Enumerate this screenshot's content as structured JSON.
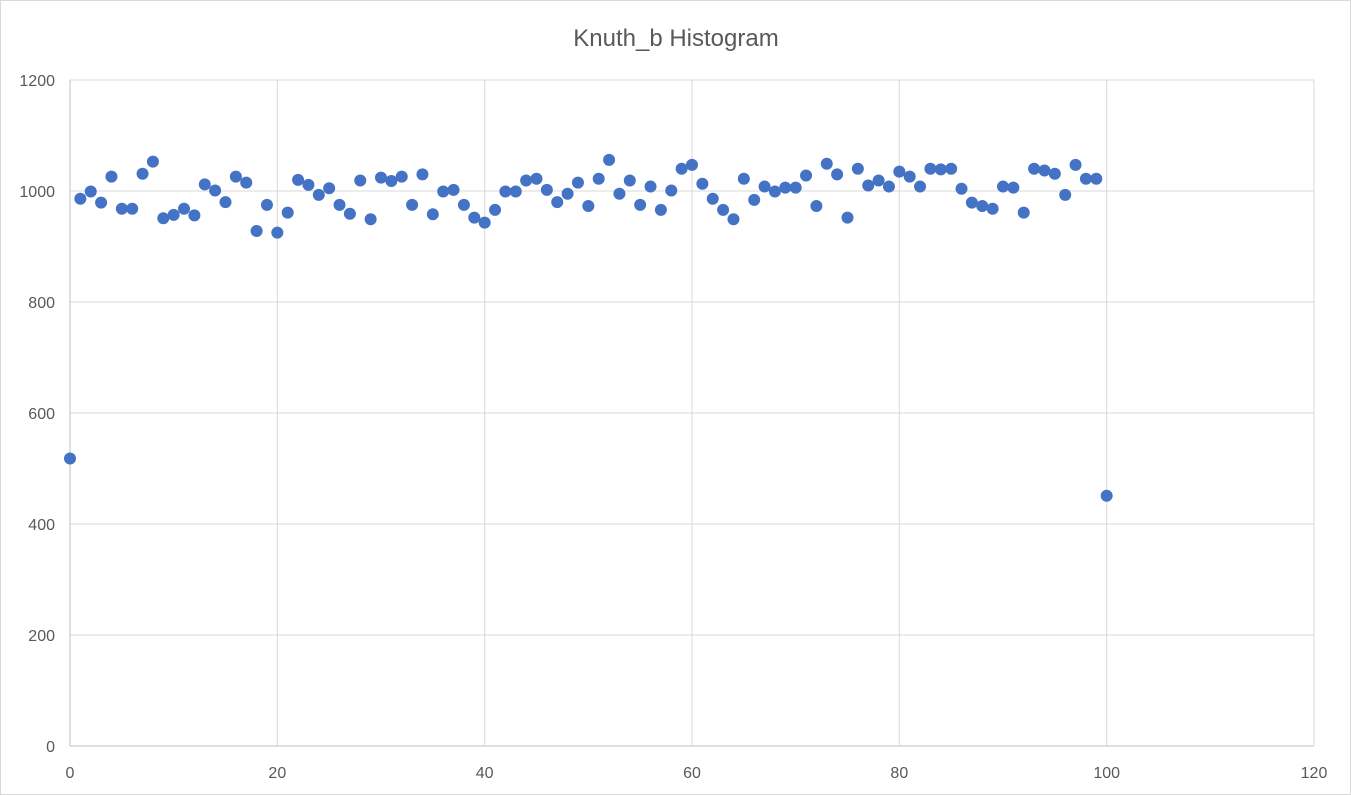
{
  "chart_data": {
    "type": "scatter",
    "title": "Knuth_b Histogram",
    "xlabel": "",
    "ylabel": "",
    "xlim": [
      0,
      120
    ],
    "ylim": [
      0,
      1200
    ],
    "x_ticks": [
      0,
      20,
      40,
      60,
      80,
      100,
      120
    ],
    "y_ticks": [
      0,
      200,
      400,
      600,
      800,
      1000,
      1200
    ],
    "grid": true,
    "legend": "none",
    "marker_color": "#4472c4",
    "series": [
      {
        "x": [
          0,
          1,
          2,
          3,
          4,
          5,
          6,
          7,
          8,
          9,
          10,
          11,
          12,
          13,
          14,
          15,
          16,
          17,
          18,
          19,
          20,
          21,
          22,
          23,
          24,
          25,
          26,
          27,
          28,
          29,
          30,
          31,
          32,
          33,
          34,
          35,
          36,
          37,
          38,
          39,
          40,
          41,
          42,
          43,
          44,
          45,
          46,
          47,
          48,
          49,
          50,
          51,
          52,
          53,
          54,
          55,
          56,
          57,
          58,
          59,
          60,
          61,
          62,
          63,
          64,
          65,
          66,
          67,
          68,
          69,
          70,
          71,
          72,
          73,
          74,
          75,
          76,
          77,
          78,
          79,
          80,
          81,
          82,
          83,
          84,
          85,
          86,
          87,
          88,
          89,
          90,
          91,
          92,
          93,
          94,
          95,
          96,
          97,
          98,
          99,
          100
        ],
        "y": [
          518,
          986,
          999,
          979,
          1026,
          968,
          968,
          1031,
          1053,
          951,
          957,
          968,
          956,
          1012,
          1001,
          980,
          1026,
          1015,
          928,
          975,
          925,
          961,
          1020,
          1011,
          993,
          1005,
          975,
          959,
          1019,
          949,
          1024,
          1018,
          1026,
          975,
          1030,
          958,
          999,
          1002,
          975,
          952,
          943,
          966,
          999,
          999,
          1019,
          1022,
          1002,
          980,
          995,
          1015,
          973,
          1022,
          1056,
          995,
          1019,
          975,
          1008,
          966,
          1001,
          1040,
          1047,
          1013,
          986,
          966,
          949,
          1022,
          984,
          1008,
          999,
          1006,
          1006,
          1028,
          973,
          1049,
          1030,
          952,
          1040,
          1010,
          1019,
          1008,
          1035,
          1026,
          1008,
          1040,
          1039,
          1040,
          1004,
          979,
          973,
          968,
          1008,
          1006,
          961,
          1040,
          1037,
          1031,
          993,
          1047,
          1022,
          1022,
          451
        ]
      }
    ]
  }
}
